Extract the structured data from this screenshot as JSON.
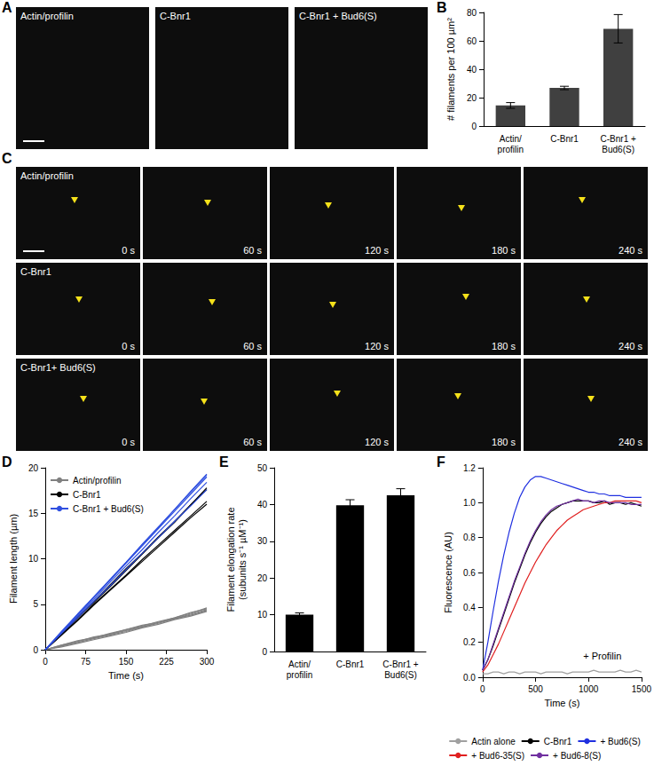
{
  "images": [
    {
      "panel": "A",
      "frames": [
        "Actin/profilin",
        "C-Bnr1",
        "C-Bnr1 + Bud6(S)"
      ]
    },
    {
      "panel": "C",
      "rows": [
        {
          "label": "Actin/profilin",
          "times": [
            "0 s",
            "60 s",
            "120 s",
            "180 s",
            "240 s"
          ]
        },
        {
          "label": "C-Bnr1",
          "times": [
            "0 s",
            "60 s",
            "120 s",
            "180 s",
            "240 s"
          ]
        },
        {
          "label": "C-Bnr1+ Bud6(S)",
          "times": [
            "0 s",
            "60 s",
            "120 s",
            "180 s",
            "240 s"
          ]
        }
      ]
    }
  ],
  "chart_data": [
    {
      "panel": "B",
      "type": "bar",
      "categories": [
        "Actin/profilin",
        "C-Bnr1",
        "C-Bnr1 + Bud6(S)"
      ],
      "values": [
        14.5,
        26.8,
        68.5
      ],
      "errors": [
        2.0,
        1.2,
        10.0
      ],
      "color": "#404040",
      "ylabel": "# filaments per 100 µm²",
      "ylim": [
        0,
        80
      ],
      "yticks": [
        0,
        20,
        40,
        60,
        80
      ],
      "grid": false
    },
    {
      "panel": "D",
      "type": "line",
      "xlabel": "Time (s)",
      "ylabel": "Filament length (µm)",
      "x": [
        0,
        30,
        60,
        90,
        120,
        150,
        180,
        210,
        240,
        270,
        300
      ],
      "xlim": [
        0,
        300
      ],
      "xticks": [
        0,
        75,
        150,
        225,
        300
      ],
      "ylim": [
        0,
        20
      ],
      "yticks": [
        0,
        5,
        10,
        15,
        20
      ],
      "grid": false,
      "legend": "upper left",
      "series": [
        {
          "name": "Actin/profilin",
          "color": "#808080",
          "values": [
            0,
            0.4,
            0.8,
            1.2,
            1.6,
            2.0,
            2.5,
            2.9,
            3.4,
            3.9,
            4.4
          ]
        },
        {
          "name": "Actin/profilin",
          "color": "#808080",
          "values": [
            0,
            0.5,
            0.9,
            1.3,
            1.8,
            2.2,
            2.6,
            3.1,
            3.5,
            4.0,
            4.6
          ]
        },
        {
          "name": "Actin/profilin",
          "color": "#808080",
          "values": [
            0,
            0.3,
            0.7,
            1.1,
            1.5,
            1.9,
            2.4,
            2.8,
            3.3,
            3.7,
            4.2
          ]
        },
        {
          "name": "Actin/profilin",
          "color": "#808080",
          "values": [
            0,
            0.4,
            0.9,
            1.4,
            1.7,
            2.1,
            2.5,
            3.0,
            3.4,
            3.8,
            4.3
          ]
        },
        {
          "name": "Actin/profilin",
          "color": "#808080",
          "values": [
            0,
            0.5,
            1.0,
            1.3,
            1.7,
            2.2,
            2.7,
            3.0,
            3.5,
            4.1,
            4.5
          ]
        },
        {
          "name": "C-Bnr1",
          "color": "#000000",
          "values": [
            0,
            1.6,
            3.2,
            4.9,
            6.5,
            8.1,
            9.7,
            11.3,
            12.9,
            14.5,
            16.0
          ]
        },
        {
          "name": "C-Bnr1",
          "color": "#000000",
          "values": [
            0,
            1.8,
            3.6,
            5.3,
            7.1,
            8.9,
            10.6,
            12.4,
            14.1,
            15.9,
            17.6
          ]
        },
        {
          "name": "C-Bnr1",
          "color": "#000000",
          "values": [
            0,
            1.7,
            3.5,
            5.2,
            6.9,
            8.7,
            10.5,
            12.3,
            14.0,
            15.9,
            17.8
          ]
        },
        {
          "name": "C-Bnr1",
          "color": "#000000",
          "values": [
            0,
            1.6,
            3.3,
            5.0,
            6.6,
            8.2,
            9.9,
            11.5,
            13.1,
            14.7,
            16.3
          ]
        },
        {
          "name": "C-Bnr1 + Bud6(S)",
          "color": "#3050e0",
          "values": [
            0,
            1.9,
            3.9,
            5.8,
            7.7,
            9.6,
            11.6,
            13.5,
            15.4,
            17.4,
            19.3
          ]
        },
        {
          "name": "C-Bnr1 + Bud6(S)",
          "color": "#3050e0",
          "values": [
            0,
            1.9,
            3.8,
            5.7,
            7.6,
            9.5,
            11.4,
            13.3,
            15.2,
            17.1,
            19.0
          ]
        },
        {
          "name": "C-Bnr1 + Bud6(S)",
          "color": "#3050e0",
          "values": [
            0,
            1.8,
            3.7,
            5.5,
            7.4,
            9.2,
            11.0,
            12.9,
            14.7,
            16.6,
            18.4
          ]
        },
        {
          "name": "C-Bnr1 + Bud6(S)",
          "color": "#3050e0",
          "values": [
            0,
            1.8,
            3.5,
            5.3,
            7.0,
            8.8,
            10.6,
            12.3,
            14.1,
            15.8,
            17.6
          ]
        },
        {
          "name": "C-Bnr1 + Bud6(S)",
          "color": "#3050e0",
          "values": [
            0,
            2.0,
            3.9,
            5.8,
            7.7,
            9.6,
            11.5,
            13.4,
            15.4,
            17.3,
            19.2
          ]
        }
      ]
    },
    {
      "panel": "E",
      "type": "bar",
      "categories": [
        "Actin/profilin",
        "C-Bnr1",
        "C-Bnr1 + Bud6(S)"
      ],
      "values": [
        10.0,
        39.8,
        42.5
      ],
      "errors": [
        0.5,
        1.5,
        1.8
      ],
      "color": "#000000",
      "ylabel": "Filament elongation rate (subunits s⁻¹ µM⁻¹)",
      "ylim": [
        0,
        50
      ],
      "yticks": [
        0,
        10,
        20,
        30,
        40,
        50
      ],
      "grid": false
    },
    {
      "panel": "F",
      "type": "line",
      "xlabel": "Time (s)",
      "ylabel": "Fluorescence (AU)",
      "x": [
        0,
        50,
        100,
        150,
        200,
        250,
        300,
        350,
        400,
        450,
        500,
        550,
        600,
        650,
        700,
        750,
        800,
        850,
        900,
        950,
        1000,
        1050,
        1100,
        1150,
        1200,
        1250,
        1300,
        1350,
        1400,
        1450,
        1500
      ],
      "xlim": [
        0,
        1500
      ],
      "xticks": [
        0,
        500,
        1000,
        1500
      ],
      "ylim": [
        0,
        1.2
      ],
      "yticks": [
        {
          "value": 0,
          "label": "0.0"
        },
        0.2,
        0.4,
        0.6,
        0.8,
        {
          "value": 1,
          "label": "1.0"
        },
        1.2
      ],
      "grid": false,
      "legend": "bottom",
      "annotations": [
        {
          "text": "+ Profilin",
          "x": 1130,
          "y": 0.12
        }
      ],
      "series": [
        {
          "name": "Actin alone",
          "color": "#a0a0a0",
          "values": [
            0.02,
            0.02,
            0.03,
            0.03,
            0.02,
            0.03,
            0.03,
            0.02,
            0.03,
            0.03,
            0.03,
            0.02,
            0.03,
            0.03,
            0.03,
            0.03,
            0.02,
            0.03,
            0.03,
            0.03,
            0.03,
            0.04,
            0.03,
            0.03,
            0.03,
            0.03,
            0.04,
            0.03,
            0.03,
            0.04,
            0.03
          ]
        },
        {
          "name": "C-Bnr1",
          "color": "#000000",
          "values": [
            0.04,
            0.1,
            0.18,
            0.27,
            0.36,
            0.45,
            0.54,
            0.62,
            0.7,
            0.77,
            0.83,
            0.88,
            0.92,
            0.95,
            0.97,
            0.99,
            1.0,
            1.01,
            1.01,
            1.01,
            1.01,
            1.0,
            1.0,
            1.01,
            0.99,
            1.0,
            1.0,
            0.99,
            1.0,
            0.99,
            0.98
          ]
        },
        {
          "name": "+ Bud6(S)",
          "color": "#2030e0",
          "values": [
            0.04,
            0.2,
            0.38,
            0.55,
            0.7,
            0.83,
            0.94,
            1.03,
            1.09,
            1.13,
            1.15,
            1.15,
            1.14,
            1.13,
            1.12,
            1.11,
            1.1,
            1.09,
            1.08,
            1.07,
            1.06,
            1.06,
            1.05,
            1.05,
            1.04,
            1.04,
            1.04,
            1.03,
            1.03,
            1.03,
            1.03
          ]
        },
        {
          "name": "+ Bud6-35(S)",
          "color": "#e02020",
          "values": [
            0.03,
            0.07,
            0.13,
            0.19,
            0.26,
            0.33,
            0.4,
            0.47,
            0.54,
            0.6,
            0.66,
            0.71,
            0.76,
            0.8,
            0.84,
            0.87,
            0.9,
            0.92,
            0.94,
            0.96,
            0.97,
            0.98,
            0.99,
            1.0,
            1.0,
            1.01,
            1.01,
            1.01,
            1.01,
            1.01,
            1.0
          ]
        },
        {
          "name": "+ Bud6-8(S)",
          "color": "#7030a0",
          "values": [
            0.04,
            0.1,
            0.19,
            0.28,
            0.37,
            0.46,
            0.55,
            0.63,
            0.71,
            0.78,
            0.84,
            0.89,
            0.93,
            0.96,
            0.98,
            0.99,
            1.0,
            1.01,
            1.02,
            1.01,
            1.01,
            1.0,
            1.01,
            1.01,
            1.0,
            1.0,
            1.0,
            1.0,
            0.99,
            0.99,
            0.99
          ]
        }
      ]
    }
  ]
}
